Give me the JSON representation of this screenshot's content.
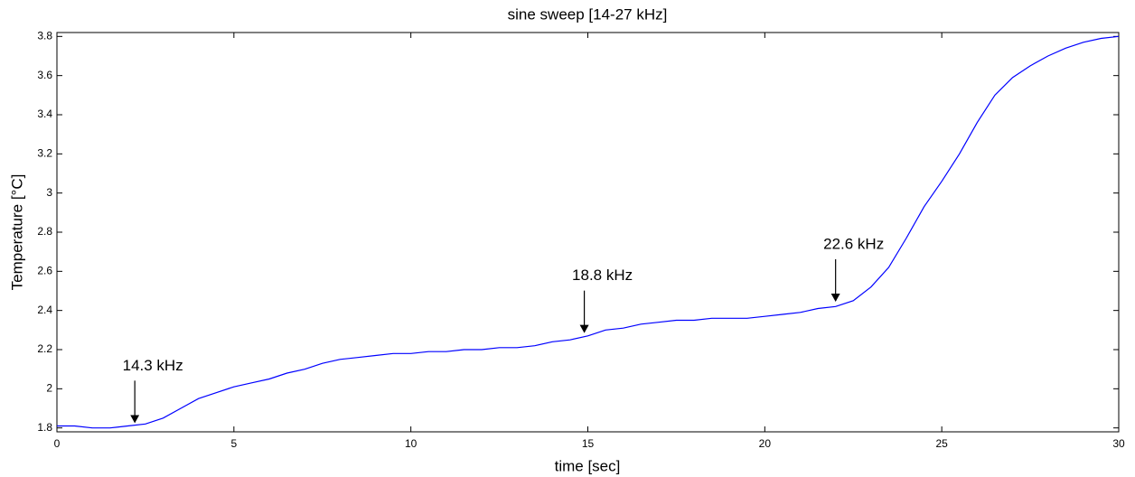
{
  "chart_data": {
    "type": "line",
    "title": "sine sweep   [14-27 kHz]",
    "xlabel": "time [sec]",
    "ylabel": "Temperature [°C]",
    "x": [
      0,
      0.5,
      1,
      1.5,
      2,
      2.5,
      3,
      3.5,
      4,
      4.5,
      5,
      5.5,
      6,
      6.5,
      7,
      7.5,
      8,
      8.5,
      9,
      9.5,
      10,
      10.5,
      11,
      11.5,
      12,
      12.5,
      13,
      13.5,
      14,
      14.5,
      15,
      15.5,
      16,
      16.5,
      17,
      17.5,
      18,
      18.5,
      19,
      19.5,
      20,
      20.5,
      21,
      21.5,
      22,
      22.5,
      23,
      23.5,
      24,
      24.5,
      25,
      25.5,
      26,
      26.5,
      27,
      27.5,
      28,
      28.5,
      29,
      29.5,
      30
    ],
    "series": [
      {
        "color": "#0000ff",
        "values": [
          1.81,
          1.81,
          1.8,
          1.8,
          1.81,
          1.82,
          1.85,
          1.9,
          1.95,
          1.98,
          2.01,
          2.03,
          2.05,
          2.08,
          2.1,
          2.13,
          2.15,
          2.16,
          2.17,
          2.18,
          2.18,
          2.19,
          2.19,
          2.2,
          2.2,
          2.21,
          2.21,
          2.22,
          2.24,
          2.25,
          2.27,
          2.3,
          2.31,
          2.33,
          2.34,
          2.35,
          2.35,
          2.36,
          2.36,
          2.36,
          2.37,
          2.38,
          2.39,
          2.41,
          2.42,
          2.45,
          2.52,
          2.62,
          2.77,
          2.93,
          3.06,
          3.2,
          3.36,
          3.5,
          3.59,
          3.65,
          3.7,
          3.74,
          3.77,
          3.79,
          3.8
        ]
      }
    ],
    "xlim": [
      0,
      30
    ],
    "xticks": [
      0,
      5,
      10,
      15,
      20,
      25,
      30
    ],
    "ylim": [
      1.78,
      3.82
    ],
    "yticks": [
      1.8,
      2,
      2.2,
      2.4,
      2.6,
      2.8,
      3,
      3.2,
      3.4,
      3.6,
      3.8
    ],
    "annotations": [
      {
        "text": "14.3 kHz",
        "x": 2.2,
        "y": 1.82
      },
      {
        "text": "18.8 kHz",
        "x": 14.9,
        "y": 2.28
      },
      {
        "text": "22.6 kHz",
        "x": 22.0,
        "y": 2.44
      }
    ]
  }
}
